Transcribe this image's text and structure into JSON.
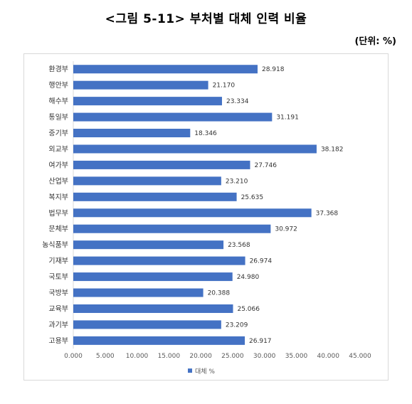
{
  "title": "<그림 5-11> 부처별 대체 인력 비율",
  "unit": "(단위: %)",
  "colors": {
    "bar": "#4472C4",
    "grid": "#d9d9d9"
  },
  "chart_data": {
    "type": "bar",
    "orientation": "horizontal",
    "categories": [
      "환경부",
      "행안부",
      "해수부",
      "통일부",
      "중기부",
      "외교부",
      "여가부",
      "산업부",
      "복지부",
      "법무부",
      "문체부",
      "농식품부",
      "기재부",
      "국토부",
      "국방부",
      "교육부",
      "과기부",
      "고용부"
    ],
    "series": [
      {
        "name": "대체 %",
        "values": [
          28.918,
          21.17,
          23.334,
          31.191,
          18.346,
          38.182,
          27.746,
          23.21,
          25.635,
          37.368,
          30.972,
          23.568,
          26.974,
          24.98,
          20.388,
          25.066,
          23.209,
          26.917
        ],
        "labels": [
          "28.918",
          "21.170",
          "23.334",
          "31.191",
          "18.346",
          "38.182",
          "27.746",
          "23.210",
          "25.635",
          "37.368",
          "30.972",
          "23.568",
          "26.974",
          "24.980",
          "20.388",
          "25.066",
          "23.209",
          "26.917"
        ]
      }
    ],
    "xlim": [
      0,
      45
    ],
    "x_ticks": [
      0,
      5,
      10,
      15,
      20,
      25,
      30,
      35,
      40,
      45
    ],
    "x_tick_labels": [
      "0.000",
      "5.000",
      "10.000",
      "15.000",
      "20.000",
      "25.000",
      "30.000",
      "35.000",
      "40.000",
      "45.000"
    ],
    "grid": false,
    "legend_position": "bottom"
  }
}
